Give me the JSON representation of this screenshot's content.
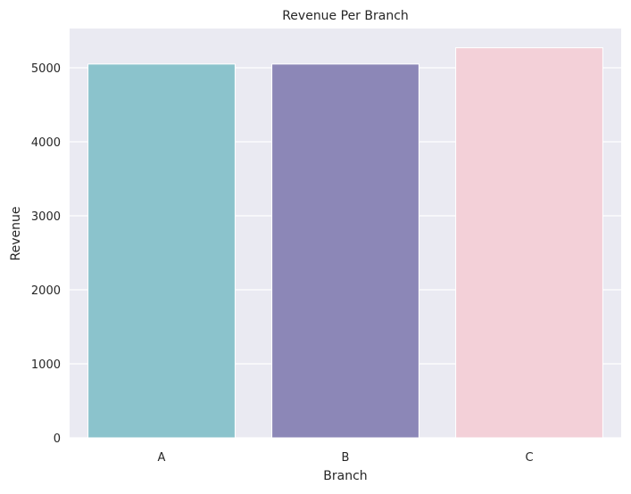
{
  "chart_data": {
    "type": "bar",
    "title": "Revenue Per Branch",
    "xlabel": "Branch",
    "ylabel": "Revenue",
    "categories": [
      "A",
      "B",
      "C"
    ],
    "values": [
      5050,
      5050,
      5270
    ],
    "ylim": [
      0,
      5530
    ],
    "yticks": [
      0,
      1000,
      2000,
      3000,
      4000,
      5000
    ],
    "grid": true,
    "colors": {
      "background": "#EAEAF2",
      "grid": "#FFFFFF",
      "bars": [
        "#8BC3CC",
        "#8C87B7",
        "#F3D0D8"
      ]
    }
  }
}
